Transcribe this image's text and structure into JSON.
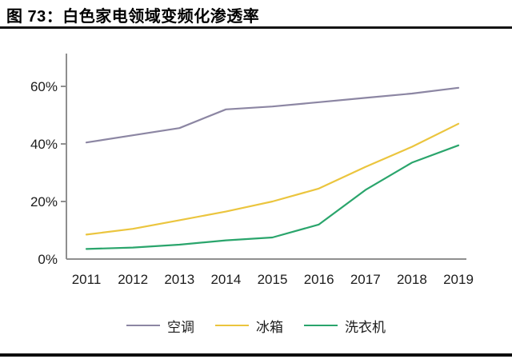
{
  "figure": {
    "title": "图 73：白色家电领域变频化渗透率"
  },
  "chart_data": {
    "type": "line",
    "title": "白色家电领域变频化渗透率",
    "x": [
      2011,
      2012,
      2013,
      2014,
      2015,
      2016,
      2017,
      2018,
      2019
    ],
    "series": [
      {
        "name": "空调",
        "color": "#8c86a3",
        "values": [
          40.5,
          43,
          45.5,
          52,
          53,
          54.5,
          56,
          57.5,
          59.5
        ]
      },
      {
        "name": "冰箱",
        "color": "#ebc53e",
        "values": [
          8.5,
          10.5,
          13.5,
          16.5,
          20,
          24.5,
          32,
          39,
          47
        ]
      },
      {
        "name": "洗衣机",
        "color": "#2aa56c",
        "values": [
          3.5,
          4,
          5,
          6.5,
          7.5,
          12,
          24,
          33.5,
          39.5
        ]
      }
    ],
    "xlabel": "",
    "ylabel": "",
    "ylim": [
      0,
      71
    ],
    "yticks": [
      0,
      20,
      40,
      60
    ],
    "ytick_format": "{v}%",
    "grid": false,
    "legend_position": "bottom",
    "axis_color": "#8f8f8f",
    "tick_label_color": "#1c1c1c"
  }
}
